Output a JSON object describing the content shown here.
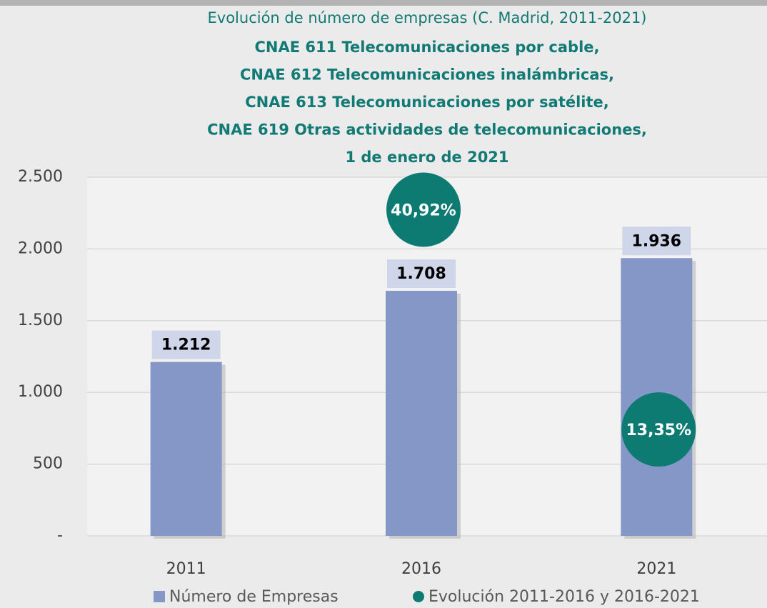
{
  "chart_data": {
    "type": "bar",
    "title": "Evolución de número de empresas (C. Madrid, 2011-2021)",
    "subtitle": [
      "CNAE 611 Telecomunicaciones por cable,",
      "CNAE 612 Telecomunicaciones inalámbricas,",
      "CNAE 613 Telecomunicaciones por satélite,",
      "CNAE 619 Otras actividades de telecomunicaciones,",
      "1 de enero de 2021"
    ],
    "categories": [
      "2011",
      "2016",
      "2021"
    ],
    "series": [
      {
        "name": "Número de Empresas",
        "type": "bar",
        "color": "#8497c6",
        "values": [
          1212,
          1708,
          1936
        ],
        "value_labels": [
          "1.212",
          "1.708",
          "1.936"
        ]
      },
      {
        "name": "Evolución 2011-2016 y 2016-2021",
        "type": "scatter",
        "axis": "y2",
        "color": "#0e7b73",
        "values": [
          null,
          40.92,
          13.35
        ],
        "value_labels": [
          null,
          "40,92%",
          "13,35%"
        ]
      }
    ],
    "ylim": [
      0,
      2500
    ],
    "yticks": [
      {
        "value": 0,
        "label": "-"
      },
      500,
      {
        "value": 1000,
        "label": "1.000"
      },
      {
        "value": 1500,
        "label": "1.500"
      },
      {
        "value": 2000,
        "label": "2.000"
      },
      {
        "value": 2500,
        "label": "2.500"
      }
    ],
    "y2lim": [
      0,
      45
    ],
    "grid": true,
    "legend": "bottom"
  }
}
